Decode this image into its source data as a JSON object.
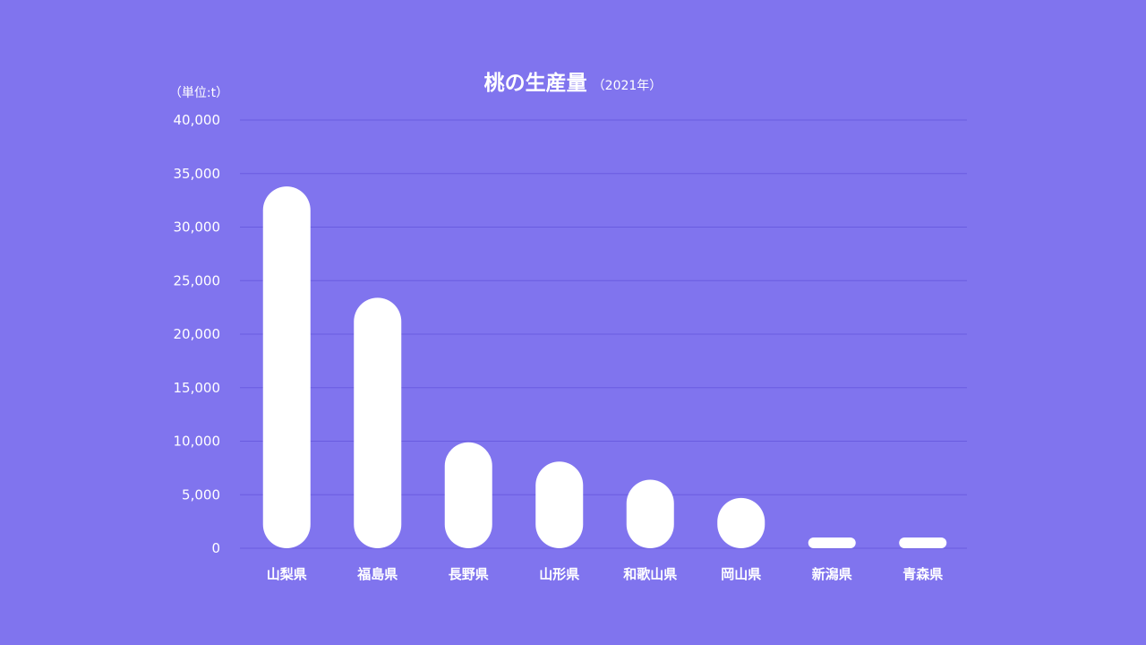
{
  "chart_data": {
    "type": "bar",
    "title": "桃の生産量",
    "subtitle": "（2021年）",
    "unit_label": "（単位:t）",
    "xlabel": "",
    "ylabel": "",
    "categories": [
      "山梨県",
      "福島県",
      "長野県",
      "山形県",
      "和歌山県",
      "岡山県",
      "新潟県",
      "青森県"
    ],
    "values": [
      33800,
      23400,
      9900,
      8100,
      6400,
      4700,
      1000,
      1000
    ],
    "y_ticks": [
      0,
      5000,
      10000,
      15000,
      20000,
      25000,
      30000,
      35000,
      40000
    ],
    "y_tick_labels": [
      "0",
      "5,000",
      "10,000",
      "15,000",
      "20,000",
      "25,000",
      "30,000",
      "35,000",
      "40,000"
    ],
    "ylim": [
      0,
      40000
    ],
    "grid": true,
    "legend": "none",
    "colors": {
      "background": "#8074ee",
      "bar": "#ffffff",
      "grid": "#6a5ce0",
      "text": "#ffffff"
    }
  }
}
